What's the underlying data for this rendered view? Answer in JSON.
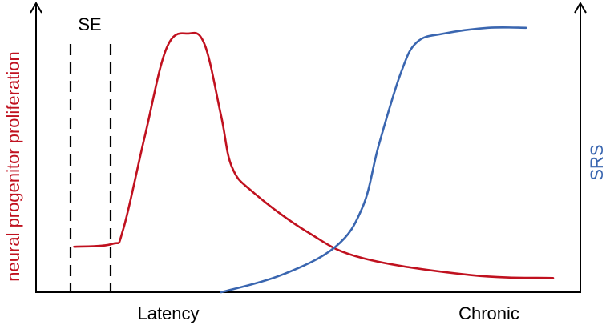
{
  "chart_data": {
    "type": "line",
    "title": "",
    "x_ticks": [
      "Latency",
      "Chronic"
    ],
    "left_axis_label": "neural progenitor proliferation",
    "right_axis_label": "SRS",
    "annotation_label": "SE",
    "x_range": [
      0,
      100
    ],
    "y_range": [
      0,
      100
    ],
    "grid": false,
    "series": [
      {
        "name": "neural progenitor proliferation",
        "axis": "left",
        "color": "#c0111f",
        "points": [
          [
            7,
            16
          ],
          [
            14,
            17
          ],
          [
            16,
            22
          ],
          [
            20,
            55
          ],
          [
            24,
            86
          ],
          [
            28,
            91
          ],
          [
            31,
            87
          ],
          [
            34,
            62
          ],
          [
            36,
            44
          ],
          [
            40,
            35
          ],
          [
            50,
            21
          ],
          [
            60,
            12
          ],
          [
            80,
            6
          ],
          [
            95,
            5
          ]
        ]
      },
      {
        "name": "SRS",
        "axis": "right",
        "color": "#3a66b0",
        "points": [
          [
            34,
            0
          ],
          [
            45,
            6
          ],
          [
            55,
            16
          ],
          [
            60,
            30
          ],
          [
            63,
            52
          ],
          [
            67,
            77
          ],
          [
            70,
            88
          ],
          [
            75,
            91
          ],
          [
            83,
            93
          ],
          [
            90,
            93
          ]
        ]
      }
    ]
  },
  "colors": {
    "axis": "#000000",
    "se_marker": "#000000",
    "left_label": "#c0111f",
    "right_label": "#3a66b0"
  }
}
